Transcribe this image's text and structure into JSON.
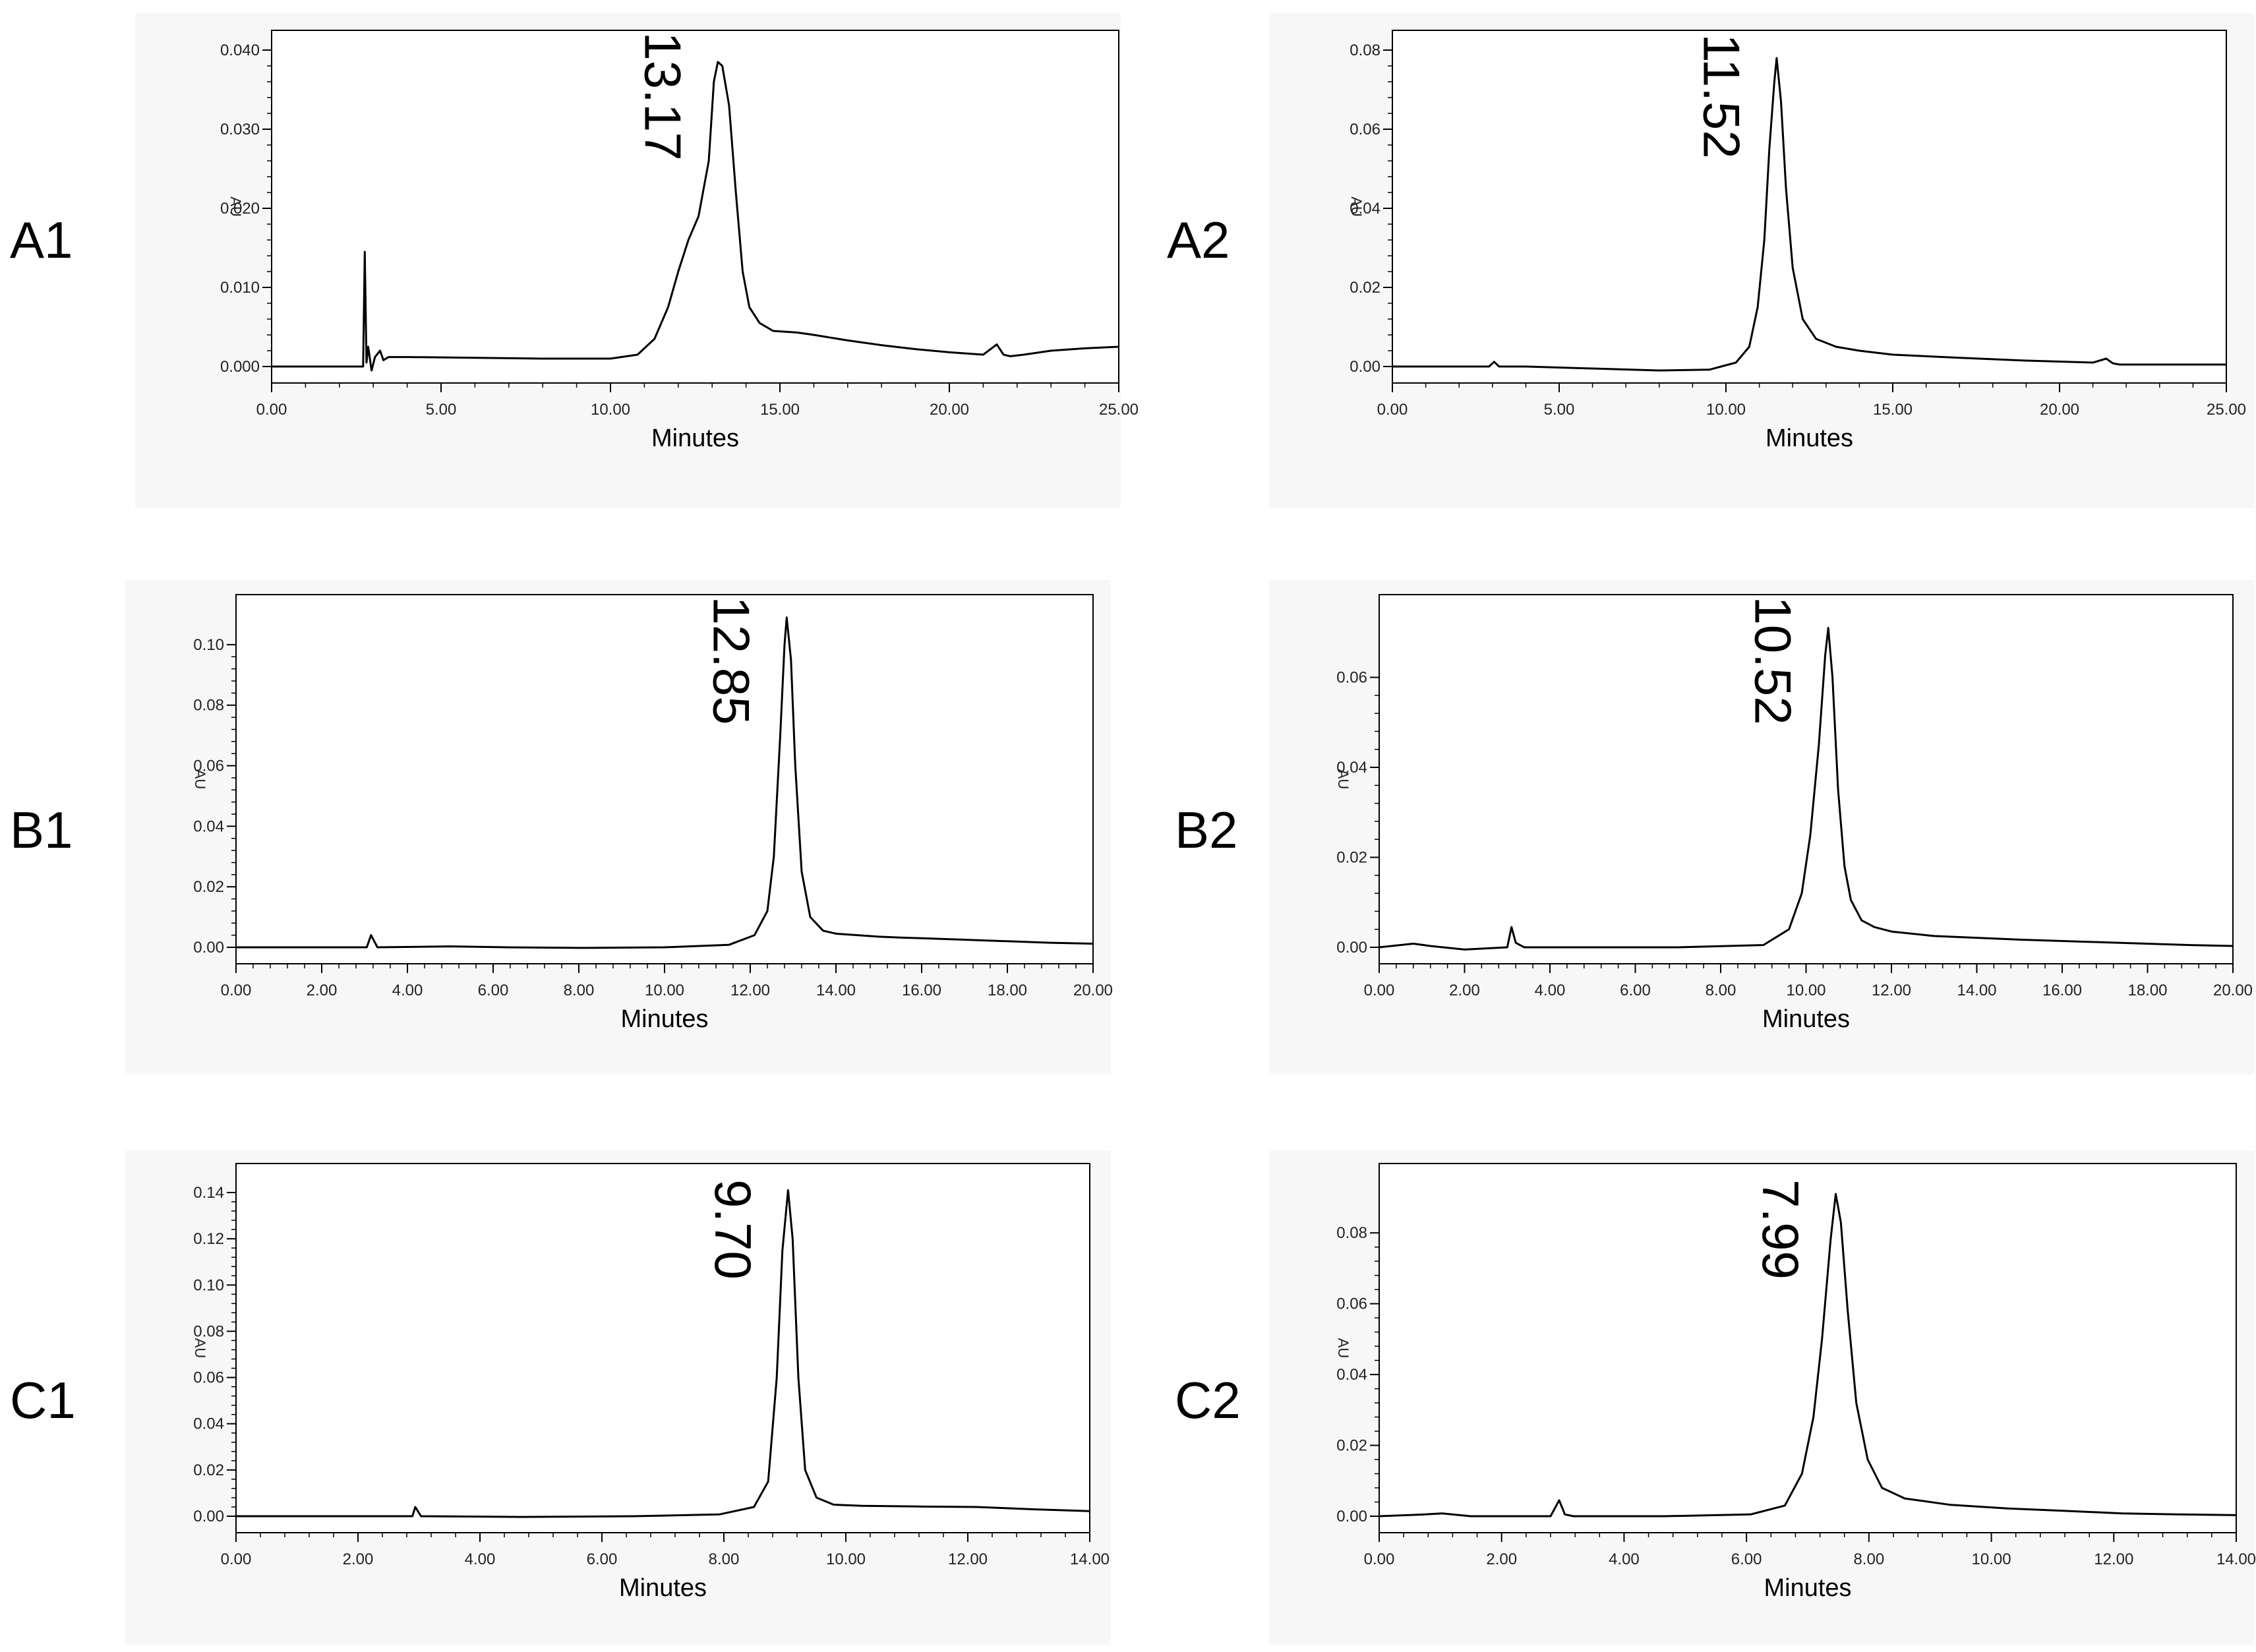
{
  "chart_data": [
    {
      "panel_label": "A1",
      "type": "line",
      "xlabel": "Minutes",
      "ylabel": "AU",
      "xlim": [
        0,
        25
      ],
      "ylim": [
        0,
        0.04
      ],
      "xticks": [
        "0.00",
        "5.00",
        "10.00",
        "15.00",
        "20.00",
        "25.00"
      ],
      "yticks": [
        "0.000",
        "0.010",
        "0.020",
        "0.030",
        "0.040"
      ],
      "peak_label": "13.17",
      "series": [
        {
          "x": [
            0,
            2.6,
            2.7,
            2.75,
            2.8,
            2.85,
            2.95,
            3.05,
            3.2,
            3.3,
            3.45,
            4,
            6,
            8,
            10,
            10.8,
            11.3,
            11.7,
            12,
            12.3,
            12.6,
            12.9,
            13.05,
            13.17,
            13.3,
            13.5,
            13.7,
            13.9,
            14.1,
            14.4,
            14.8,
            15.5,
            16,
            17,
            18,
            19,
            20,
            21,
            21.4,
            21.6,
            21.8,
            22.2,
            23,
            24,
            25
          ],
          "y": [
            0,
            0,
            0,
            0.0145,
            0.0005,
            0.0025,
            -0.0005,
            0.0012,
            0.002,
            0.0008,
            0.0012,
            0.0012,
            0.0011,
            0.001,
            0.001,
            0.0015,
            0.0035,
            0.0075,
            0.012,
            0.016,
            0.019,
            0.026,
            0.036,
            0.0385,
            0.038,
            0.033,
            0.022,
            0.012,
            0.0075,
            0.0055,
            0.0045,
            0.0043,
            0.004,
            0.0033,
            0.0027,
            0.0022,
            0.0018,
            0.0015,
            0.0028,
            0.0015,
            0.0013,
            0.0015,
            0.002,
            0.0023,
            0.0025
          ]
        }
      ]
    },
    {
      "panel_label": "A2",
      "type": "line",
      "xlabel": "Minutes",
      "ylabel": "AU",
      "xlim": [
        0,
        25
      ],
      "ylim": [
        0,
        0.08
      ],
      "xticks": [
        "0.00",
        "5.00",
        "10.00",
        "15.00",
        "20.00",
        "25.00"
      ],
      "yticks": [
        "0.00",
        "0.02",
        "0.04",
        "0.06",
        "0.08"
      ],
      "peak_label": "11.52",
      "series": [
        {
          "x": [
            0,
            2.9,
            3.05,
            3.2,
            4,
            6,
            8,
            9.5,
            10.3,
            10.7,
            10.95,
            11.15,
            11.3,
            11.45,
            11.52,
            11.65,
            11.8,
            12,
            12.3,
            12.7,
            13.3,
            14,
            15,
            17,
            19,
            21,
            21.4,
            21.6,
            21.8,
            22.5,
            24,
            25
          ],
          "y": [
            0,
            0,
            0.0012,
            0,
            0,
            -0.0005,
            -0.001,
            -0.0008,
            0.001,
            0.005,
            0.015,
            0.032,
            0.055,
            0.072,
            0.078,
            0.067,
            0.045,
            0.025,
            0.012,
            0.007,
            0.005,
            0.004,
            0.003,
            0.0022,
            0.0015,
            0.001,
            0.002,
            0.0008,
            0.0005,
            0.0005,
            0.0005,
            0.0005
          ]
        }
      ]
    },
    {
      "panel_label": "B1",
      "type": "line",
      "xlabel": "Minutes",
      "ylabel": "AU",
      "xlim": [
        0,
        20
      ],
      "ylim": [
        0,
        0.11
      ],
      "xticks": [
        "0.00",
        "2.00",
        "4.00",
        "6.00",
        "8.00",
        "10.00",
        "12.00",
        "14.00",
        "16.00",
        "18.00",
        "20.00"
      ],
      "yticks": [
        "0.00",
        "0.02",
        "0.04",
        "0.06",
        "0.08",
        "0.10"
      ],
      "peak_label": "12.85",
      "series": [
        {
          "x": [
            0,
            3.05,
            3.15,
            3.3,
            5,
            6.3,
            8,
            10,
            11.5,
            12.1,
            12.4,
            12.55,
            12.7,
            12.8,
            12.85,
            12.95,
            13.05,
            13.2,
            13.4,
            13.7,
            14,
            15,
            15.5,
            16,
            17,
            18,
            19,
            20
          ],
          "y": [
            0,
            0,
            0.004,
            0,
            0.0003,
            0,
            -0.0002,
            0,
            0.0008,
            0.004,
            0.012,
            0.03,
            0.07,
            0.1,
            0.109,
            0.095,
            0.06,
            0.025,
            0.01,
            0.0055,
            0.0045,
            0.0035,
            0.0032,
            0.003,
            0.0025,
            0.002,
            0.0015,
            0.0012
          ]
        }
      ]
    },
    {
      "panel_label": "B2",
      "type": "line",
      "xlabel": "Minutes",
      "ylabel": "AU",
      "xlim": [
        0,
        20
      ],
      "ylim": [
        0,
        0.074
      ],
      "xticks": [
        "0.00",
        "2.00",
        "4.00",
        "6.00",
        "8.00",
        "10.00",
        "12.00",
        "14.00",
        "16.00",
        "18.00",
        "20.00"
      ],
      "yticks": [
        "0.00",
        "0.02",
        "0.04",
        "0.06"
      ],
      "peak_label": "10.52",
      "series": [
        {
          "x": [
            0,
            0.8,
            1.2,
            2,
            3,
            3.1,
            3.2,
            3.4,
            5,
            7,
            9,
            9.6,
            9.9,
            10.1,
            10.3,
            10.45,
            10.52,
            10.62,
            10.75,
            10.9,
            11.05,
            11.3,
            11.6,
            12,
            13,
            15,
            17,
            19,
            20
          ],
          "y": [
            0,
            0.0008,
            0.0003,
            -0.0005,
            0,
            0.0045,
            0.001,
            0,
            0,
            0,
            0.0005,
            0.004,
            0.012,
            0.025,
            0.045,
            0.065,
            0.071,
            0.06,
            0.035,
            0.018,
            0.0105,
            0.006,
            0.0045,
            0.0035,
            0.0025,
            0.0017,
            0.0011,
            0.0005,
            0.0003
          ]
        }
      ]
    },
    {
      "panel_label": "C1",
      "type": "line",
      "xlabel": "Minutes",
      "ylabel": "AU",
      "xlim": [
        0,
        15
      ],
      "ylim": [
        0,
        0.144
      ],
      "xticks": [
        "0.00",
        "2.00",
        "4.00",
        "6.00",
        "8.00",
        "10.00",
        "12.00",
        "14.00"
      ],
      "yticks": [
        "0.00",
        "0.02",
        "0.04",
        "0.06",
        "0.08",
        "0.10",
        "0.12",
        "0.14"
      ],
      "peak_label": "9.70",
      "series": [
        {
          "x": [
            0,
            3.1,
            3.15,
            3.25,
            5,
            7,
            8.5,
            9.1,
            9.35,
            9.5,
            9.6,
            9.7,
            9.78,
            9.88,
            10,
            10.2,
            10.5,
            11,
            12,
            13,
            14,
            15
          ],
          "y": [
            0,
            0,
            0.004,
            0,
            -0.0003,
            0,
            0.0008,
            0.004,
            0.015,
            0.06,
            0.115,
            0.141,
            0.12,
            0.06,
            0.02,
            0.008,
            0.005,
            0.0045,
            0.0042,
            0.004,
            0.003,
            0.0022
          ]
        }
      ]
    },
    {
      "panel_label": "C2",
      "type": "line",
      "xlabel": "Minutes",
      "ylabel": "AU",
      "xlim": [
        0,
        15
      ],
      "ylim": [
        0,
        0.094
      ],
      "xticks": [
        "0.00",
        "2.00",
        "4.00",
        "6.00",
        "8.00",
        "10.00",
        "12.00",
        "14.00"
      ],
      "yticks": [
        "0.00",
        "0.02",
        "0.04",
        "0.06",
        "0.08"
      ],
      "peak_label": "7.99",
      "series": [
        {
          "x": [
            0,
            0.8,
            1.1,
            1.6,
            3,
            3.15,
            3.25,
            3.4,
            5,
            6.5,
            7.1,
            7.4,
            7.6,
            7.75,
            7.9,
            7.99,
            8.08,
            8.2,
            8.35,
            8.55,
            8.8,
            9.2,
            10,
            11,
            12,
            13,
            14,
            15
          ],
          "y": [
            0,
            0.0005,
            0.0008,
            0,
            0,
            0.0045,
            0.0005,
            0,
            0,
            0.0005,
            0.003,
            0.012,
            0.028,
            0.05,
            0.078,
            0.091,
            0.083,
            0.058,
            0.032,
            0.016,
            0.008,
            0.005,
            0.0032,
            0.0022,
            0.0015,
            0.0008,
            0.0005,
            0.0003
          ]
        }
      ]
    }
  ]
}
